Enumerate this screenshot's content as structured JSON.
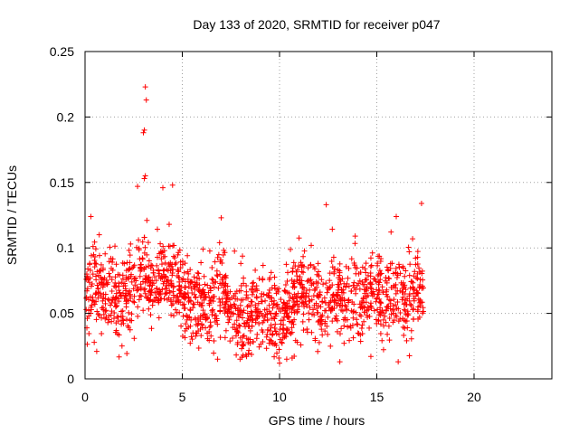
{
  "chart_data": {
    "type": "scatter",
    "title": "Day 133 of 2020, SRMTID for receiver p047",
    "xlabel": "GPS time / hours",
    "ylabel": "SRMTID / TECUs",
    "xlim": [
      0,
      24
    ],
    "ylim": [
      0,
      0.25
    ],
    "xticks": [
      0,
      5,
      10,
      15,
      20
    ],
    "xtick_labels": [
      "0",
      "5",
      "10",
      "15",
      "20"
    ],
    "yticks": [
      0,
      0.05,
      0.1,
      0.15,
      0.2,
      0.25
    ],
    "ytick_labels": [
      "0",
      "0.05",
      "0.1",
      "0.15",
      "0.2",
      "0.25"
    ],
    "grid": true,
    "marker": "+",
    "series": [
      {
        "name": "SRMTID",
        "color": "#ff0000",
        "profile": {
          "x": [
            0,
            0.5,
            1,
            1.5,
            2,
            2.5,
            3,
            3.5,
            4,
            4.5,
            5,
            5.5,
            6,
            6.5,
            7,
            7.5,
            8,
            8.5,
            9,
            9.5,
            10,
            10.5,
            11,
            11.5,
            12,
            12.5,
            13,
            13.5,
            14,
            14.5,
            15,
            15.5,
            16,
            16.5,
            17,
            17.4
          ],
          "y": [
            0.065,
            0.075,
            0.065,
            0.06,
            0.065,
            0.07,
            0.085,
            0.07,
            0.085,
            0.075,
            0.065,
            0.06,
            0.06,
            0.055,
            0.07,
            0.055,
            0.045,
            0.05,
            0.055,
            0.05,
            0.045,
            0.055,
            0.07,
            0.065,
            0.06,
            0.065,
            0.065,
            0.06,
            0.065,
            0.065,
            0.065,
            0.06,
            0.065,
            0.06,
            0.065,
            0.07
          ]
        },
        "highlighted_points": [
          {
            "x": 3.1,
            "y": 0.223
          },
          {
            "x": 3.15,
            "y": 0.213
          },
          {
            "x": 3.05,
            "y": 0.19
          },
          {
            "x": 3.0,
            "y": 0.188
          },
          {
            "x": 3.1,
            "y": 0.155
          },
          {
            "x": 3.05,
            "y": 0.153
          },
          {
            "x": 2.7,
            "y": 0.147
          },
          {
            "x": 4.5,
            "y": 0.148
          },
          {
            "x": 4.0,
            "y": 0.146
          },
          {
            "x": 17.3,
            "y": 0.134
          },
          {
            "x": 12.4,
            "y": 0.133
          },
          {
            "x": 16.0,
            "y": 0.124
          },
          {
            "x": 0.3,
            "y": 0.124
          },
          {
            "x": 7.0,
            "y": 0.123
          },
          {
            "x": 0.6,
            "y": 0.021
          },
          {
            "x": 10.0,
            "y": 0.012
          },
          {
            "x": 13.1,
            "y": 0.013
          },
          {
            "x": 16.1,
            "y": 0.013
          }
        ],
        "n_points": 1650,
        "x_range": [
          0,
          17.4
        ]
      }
    ]
  }
}
